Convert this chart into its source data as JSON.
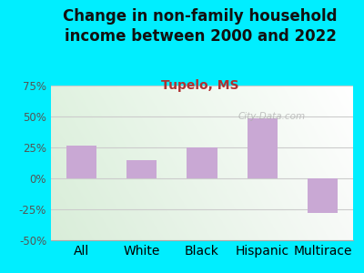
{
  "title": "Change in non-family household\nincome between 2000 and 2022",
  "subtitle": "Tupelo, MS",
  "categories": [
    "All",
    "White",
    "Black",
    "Hispanic",
    "Multirace"
  ],
  "values": [
    27,
    15,
    25,
    49,
    -28
  ],
  "bar_color": "#c9a8d4",
  "title_color": "#111111",
  "subtitle_color": "#b03030",
  "background_outer": "#00eeff",
  "ylim": [
    -50,
    75
  ],
  "yticks": [
    -50,
    -25,
    0,
    25,
    50,
    75
  ],
  "ytick_labels": [
    "-50%",
    "-25%",
    "0%",
    "25%",
    "50%",
    "75%"
  ],
  "watermark": "City-Data.com",
  "title_fontsize": 12,
  "subtitle_fontsize": 10,
  "tick_fontsize": 8.5
}
